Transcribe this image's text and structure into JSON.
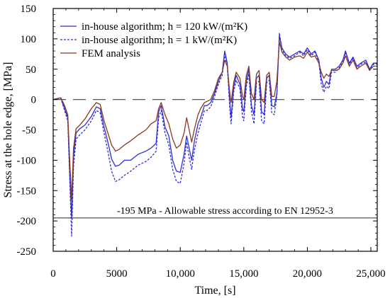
{
  "chart_data": {
    "type": "line",
    "xlabel": "Time, [s]",
    "ylabel": "Stress at the hole edge, [MPa]",
    "xlim": [
      0,
      25500
    ],
    "ylim": [
      -250,
      150
    ],
    "x_ticks": [
      0,
      5000,
      10000,
      15000,
      20000,
      25000
    ],
    "x_tick_labels": [
      "0",
      "5000",
      "10,000",
      "15,000",
      "20,000",
      "25,000"
    ],
    "y_ticks": [
      -250,
      -200,
      -150,
      -100,
      -50,
      0,
      50,
      100,
      150
    ],
    "y_tick_labels": [
      "-250",
      "-200",
      "-150",
      "-100",
      "-50",
      "0",
      "50",
      "100",
      "150"
    ],
    "legend_position": "top-left",
    "reference_lines": [
      {
        "y": -195,
        "style": "solid",
        "color": "#555555",
        "label": "-195 MPa - Allowable stress according to EN 12952-3"
      },
      {
        "y": 0,
        "style": "dashed",
        "color": "#555555",
        "label": ""
      }
    ],
    "series": [
      {
        "name": "in-house algorithm; h = 120 kW/(m²K)",
        "color": "#2f2fd6",
        "dash": "solid",
        "points": [
          [
            0,
            0
          ],
          [
            600,
            3
          ],
          [
            900,
            -15
          ],
          [
            1150,
            -30
          ],
          [
            1300,
            -120
          ],
          [
            1450,
            -195
          ],
          [
            1600,
            -95
          ],
          [
            1800,
            -55
          ],
          [
            2100,
            -48
          ],
          [
            2500,
            -42
          ],
          [
            3000,
            -28
          ],
          [
            3400,
            -12
          ],
          [
            3700,
            -15
          ],
          [
            4000,
            -45
          ],
          [
            4300,
            -70
          ],
          [
            4600,
            -98
          ],
          [
            4900,
            -110
          ],
          [
            5200,
            -108
          ],
          [
            5600,
            -100
          ],
          [
            6100,
            -100
          ],
          [
            6700,
            -90
          ],
          [
            7300,
            -85
          ],
          [
            7700,
            -80
          ],
          [
            8100,
            -72
          ],
          [
            8300,
            -20
          ],
          [
            8500,
            -10
          ],
          [
            8800,
            -45
          ],
          [
            9100,
            -60
          ],
          [
            9400,
            -100
          ],
          [
            9700,
            -118
          ],
          [
            10000,
            -120
          ],
          [
            10300,
            -90
          ],
          [
            10500,
            -60
          ],
          [
            10700,
            -80
          ],
          [
            10900,
            -100
          ],
          [
            11100,
            -70
          ],
          [
            11400,
            -40
          ],
          [
            11600,
            -30
          ],
          [
            11900,
            -10
          ],
          [
            12100,
            -10
          ],
          [
            12400,
            -5
          ],
          [
            12700,
            10
          ],
          [
            13000,
            30
          ],
          [
            13300,
            45
          ],
          [
            13500,
            80
          ],
          [
            13700,
            60
          ],
          [
            13900,
            -5
          ],
          [
            14000,
            -30
          ],
          [
            14200,
            20
          ],
          [
            14400,
            40
          ],
          [
            14700,
            25
          ],
          [
            14900,
            -15
          ],
          [
            15000,
            -20
          ],
          [
            15200,
            30
          ],
          [
            15400,
            50
          ],
          [
            15600,
            -10
          ],
          [
            15800,
            -25
          ],
          [
            16000,
            35
          ],
          [
            16200,
            40
          ],
          [
            16400,
            -20
          ],
          [
            16600,
            -25
          ],
          [
            16800,
            35
          ],
          [
            17000,
            40
          ],
          [
            17200,
            -10
          ],
          [
            17400,
            -12
          ],
          [
            17600,
            10
          ],
          [
            17800,
            105
          ],
          [
            18000,
            85
          ],
          [
            18300,
            75
          ],
          [
            18600,
            70
          ],
          [
            19000,
            75
          ],
          [
            19400,
            80
          ],
          [
            19700,
            75
          ],
          [
            20000,
            85
          ],
          [
            20300,
            75
          ],
          [
            20600,
            80
          ],
          [
            20900,
            65
          ],
          [
            21100,
            35
          ],
          [
            21300,
            20
          ],
          [
            21500,
            30
          ],
          [
            21700,
            25
          ],
          [
            21900,
            50
          ],
          [
            22200,
            50
          ],
          [
            22500,
            55
          ],
          [
            22800,
            65
          ],
          [
            23000,
            80
          ],
          [
            23300,
            60
          ],
          [
            23600,
            70
          ],
          [
            23900,
            55
          ],
          [
            24200,
            60
          ],
          [
            24600,
            65
          ],
          [
            24900,
            50
          ],
          [
            25200,
            60
          ],
          [
            25500,
            60
          ]
        ]
      },
      {
        "name": "in-house algorithm; h = 1 kW/(m²K)",
        "color": "#2f2fd6",
        "dash": "dashed",
        "points": [
          [
            0,
            0
          ],
          [
            600,
            2
          ],
          [
            900,
            -18
          ],
          [
            1150,
            -35
          ],
          [
            1300,
            -130
          ],
          [
            1450,
            -225
          ],
          [
            1600,
            -110
          ],
          [
            1800,
            -65
          ],
          [
            2100,
            -58
          ],
          [
            2500,
            -50
          ],
          [
            3000,
            -35
          ],
          [
            3400,
            -18
          ],
          [
            3700,
            -22
          ],
          [
            4000,
            -55
          ],
          [
            4300,
            -85
          ],
          [
            4600,
            -118
          ],
          [
            4900,
            -135
          ],
          [
            5200,
            -132
          ],
          [
            5600,
            -125
          ],
          [
            6100,
            -118
          ],
          [
            6700,
            -108
          ],
          [
            7300,
            -102
          ],
          [
            7700,
            -95
          ],
          [
            8100,
            -85
          ],
          [
            8300,
            -30
          ],
          [
            8500,
            -18
          ],
          [
            8800,
            -55
          ],
          [
            9100,
            -75
          ],
          [
            9400,
            -115
          ],
          [
            9700,
            -135
          ],
          [
            10000,
            -138
          ],
          [
            10300,
            -105
          ],
          [
            10500,
            -70
          ],
          [
            10700,
            -95
          ],
          [
            10900,
            -115
          ],
          [
            11100,
            -85
          ],
          [
            11400,
            -55
          ],
          [
            11600,
            -40
          ],
          [
            11900,
            -18
          ],
          [
            12100,
            -18
          ],
          [
            12400,
            -12
          ],
          [
            12700,
            5
          ],
          [
            13000,
            25
          ],
          [
            13300,
            40
          ],
          [
            13500,
            75
          ],
          [
            13700,
            55
          ],
          [
            13900,
            -15
          ],
          [
            14000,
            -40
          ],
          [
            14200,
            12
          ],
          [
            14400,
            32
          ],
          [
            14700,
            18
          ],
          [
            14900,
            -28
          ],
          [
            15000,
            -35
          ],
          [
            15200,
            22
          ],
          [
            15400,
            42
          ],
          [
            15600,
            -20
          ],
          [
            15800,
            -40
          ],
          [
            16000,
            28
          ],
          [
            16200,
            30
          ],
          [
            16400,
            -35
          ],
          [
            16600,
            -40
          ],
          [
            16800,
            28
          ],
          [
            17000,
            32
          ],
          [
            17200,
            -22
          ],
          [
            17400,
            -25
          ],
          [
            17600,
            5
          ],
          [
            17800,
            110
          ],
          [
            18000,
            82
          ],
          [
            18300,
            72
          ],
          [
            18600,
            68
          ],
          [
            19000,
            72
          ],
          [
            19400,
            78
          ],
          [
            19700,
            72
          ],
          [
            20000,
            82
          ],
          [
            20300,
            72
          ],
          [
            20600,
            78
          ],
          [
            20900,
            62
          ],
          [
            21100,
            25
          ],
          [
            21300,
            12
          ],
          [
            21500,
            22
          ],
          [
            21700,
            18
          ],
          [
            21900,
            45
          ],
          [
            22200,
            45
          ],
          [
            22500,
            52
          ],
          [
            22800,
            62
          ],
          [
            23000,
            78
          ],
          [
            23300,
            58
          ],
          [
            23600,
            68
          ],
          [
            23900,
            52
          ],
          [
            24200,
            58
          ],
          [
            24600,
            62
          ],
          [
            24900,
            48
          ],
          [
            25200,
            58
          ],
          [
            25500,
            58
          ]
        ]
      },
      {
        "name": "FEM analysis",
        "color": "#8b3a1e",
        "dash": "solid",
        "points": [
          [
            0,
            0
          ],
          [
            600,
            3
          ],
          [
            900,
            -10
          ],
          [
            1150,
            -25
          ],
          [
            1300,
            -100
          ],
          [
            1450,
            -165
          ],
          [
            1600,
            -80
          ],
          [
            1800,
            -48
          ],
          [
            2100,
            -42
          ],
          [
            2500,
            -32
          ],
          [
            3000,
            -15
          ],
          [
            3400,
            -5
          ],
          [
            3700,
            -8
          ],
          [
            4000,
            -35
          ],
          [
            4300,
            -55
          ],
          [
            4600,
            -75
          ],
          [
            4900,
            -85
          ],
          [
            5200,
            -82
          ],
          [
            5600,
            -75
          ],
          [
            6100,
            -68
          ],
          [
            6700,
            -58
          ],
          [
            7300,
            -50
          ],
          [
            7700,
            -40
          ],
          [
            8100,
            -35
          ],
          [
            8300,
            -15
          ],
          [
            8500,
            -5
          ],
          [
            8800,
            -25
          ],
          [
            9100,
            -40
          ],
          [
            9400,
            -65
          ],
          [
            9700,
            -80
          ],
          [
            10000,
            -75
          ],
          [
            10300,
            -55
          ],
          [
            10500,
            -30
          ],
          [
            10700,
            -50
          ],
          [
            10900,
            -70
          ],
          [
            11100,
            -50
          ],
          [
            11400,
            -25
          ],
          [
            11600,
            -15
          ],
          [
            11900,
            -5
          ],
          [
            12100,
            -3
          ],
          [
            12400,
            0
          ],
          [
            12700,
            15
          ],
          [
            13000,
            35
          ],
          [
            13300,
            45
          ],
          [
            13500,
            65
          ],
          [
            13700,
            55
          ],
          [
            13900,
            10
          ],
          [
            14000,
            -5
          ],
          [
            14200,
            28
          ],
          [
            14400,
            45
          ],
          [
            14700,
            35
          ],
          [
            14900,
            5
          ],
          [
            15000,
            0
          ],
          [
            15200,
            40
          ],
          [
            15400,
            55
          ],
          [
            15600,
            10
          ],
          [
            15800,
            0
          ],
          [
            16000,
            42
          ],
          [
            16200,
            48
          ],
          [
            16400,
            0
          ],
          [
            16600,
            -5
          ],
          [
            16800,
            40
          ],
          [
            17000,
            45
          ],
          [
            17200,
            5
          ],
          [
            17400,
            5
          ],
          [
            17600,
            30
          ],
          [
            17800,
            95
          ],
          [
            18000,
            78
          ],
          [
            18300,
            70
          ],
          [
            18600,
            65
          ],
          [
            19000,
            70
          ],
          [
            19400,
            72
          ],
          [
            19700,
            68
          ],
          [
            20000,
            78
          ],
          [
            20300,
            70
          ],
          [
            20600,
            72
          ],
          [
            20900,
            60
          ],
          [
            21100,
            45
          ],
          [
            21300,
            35
          ],
          [
            21500,
            42
          ],
          [
            21700,
            38
          ],
          [
            21900,
            48
          ],
          [
            22200,
            48
          ],
          [
            22500,
            50
          ],
          [
            22800,
            60
          ],
          [
            23000,
            72
          ],
          [
            23300,
            55
          ],
          [
            23600,
            65
          ],
          [
            23900,
            50
          ],
          [
            24200,
            55
          ],
          [
            24600,
            60
          ],
          [
            24900,
            48
          ],
          [
            25200,
            55
          ],
          [
            25500,
            55
          ]
        ]
      }
    ]
  }
}
